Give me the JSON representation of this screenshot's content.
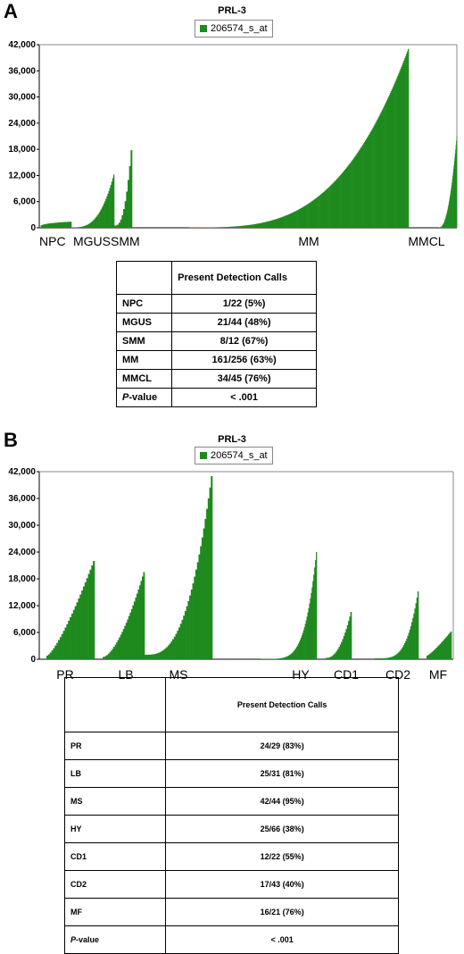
{
  "panels": {
    "a": {
      "letter": "A",
      "title": "PRL-3",
      "legend": "206574_s_at"
    },
    "b": {
      "letter": "B",
      "title": "PRL-3",
      "legend": "206574_s_at"
    }
  },
  "colors": {
    "bar": "#1e8a1e",
    "axis": "#000000",
    "grid": "#cccccc"
  },
  "chart_data": [
    {
      "type": "bar",
      "title": "PRL-3",
      "legend": [
        "206574_s_at"
      ],
      "legend_position": "top-center",
      "ylim": [
        0,
        42000
      ],
      "yticks": [
        "0",
        "6,000",
        "12,000",
        "18,000",
        "24,000",
        "30,000",
        "36,000",
        "42,000"
      ],
      "grid": false,
      "groups": [
        {
          "name": "NPC",
          "n": 22,
          "max": 1400,
          "min": 50,
          "shape": 0.3,
          "label": "NPC"
        },
        {
          "name": "MGUS",
          "n": 44,
          "max": 12200,
          "min": 100,
          "shape": 3.0,
          "label": "MGUS"
        },
        {
          "name": "SMM",
          "n": 12,
          "max": 17800,
          "min": 500,
          "shape": 2.5,
          "label": "SMM"
        },
        {
          "name": "MM",
          "n": 256,
          "max": 41000,
          "min": 80,
          "shape": 3.3,
          "label": "MM"
        },
        {
          "name": "MMCL",
          "n": 45,
          "max": 21000,
          "min": 100,
          "shape": 2.2,
          "label": "MMCL"
        }
      ]
    },
    {
      "type": "bar",
      "title": "PRL-3",
      "legend": [
        "206574_s_at"
      ],
      "legend_position": "top-center",
      "ylim": [
        0,
        42000
      ],
      "yticks": [
        "0",
        "6,000",
        "12,000",
        "18,000",
        "24,000",
        "30,000",
        "36,000",
        "42,000"
      ],
      "grid": false,
      "groups": [
        {
          "name": "PR",
          "n": 29,
          "max": 22000,
          "min": 800,
          "shape": 1.3,
          "label": "PR"
        },
        {
          "name": "LB",
          "n": 31,
          "max": 19500,
          "min": 500,
          "shape": 1.6,
          "label": "LB"
        },
        {
          "name": "MS",
          "n": 44,
          "max": 41000,
          "min": 1000,
          "shape": 2.8,
          "label": "MS"
        },
        {
          "name": "HY",
          "n": 66,
          "max": 24000,
          "min": 80,
          "shape": 5.0,
          "label": "HY"
        },
        {
          "name": "CD1",
          "n": 22,
          "max": 10600,
          "min": 300,
          "shape": 2.2,
          "label": "CD1"
        },
        {
          "name": "CD2",
          "n": 43,
          "max": 15200,
          "min": 200,
          "shape": 4.0,
          "label": "CD2"
        },
        {
          "name": "MF",
          "n": 21,
          "max": 6200,
          "min": 800,
          "shape": 1.2,
          "label": "MF"
        }
      ]
    }
  ],
  "table_a": {
    "header": "Present Detection Calls",
    "rows": [
      {
        "label": "NPC",
        "value": "1/22 (5%)"
      },
      {
        "label": "MGUS",
        "value": "21/44 (48%)"
      },
      {
        "label": "SMM",
        "value": "8/12 (67%)"
      },
      {
        "label": "MM",
        "value": "161/256 (63%)"
      },
      {
        "label": "MMCL",
        "value": "34/45 (76%)"
      }
    ],
    "pvalue_p": "P",
    "pvalue_rest": "-value",
    "pvalue": "< .001"
  },
  "table_b": {
    "header": "Present Detection Calls",
    "rows": [
      {
        "label": "PR",
        "value": "24/29 (83%)"
      },
      {
        "label": "LB",
        "value": "25/31 (81%)"
      },
      {
        "label": "MS",
        "value": "42/44 (95%)"
      },
      {
        "label": "HY",
        "value": "25/66 (38%)"
      },
      {
        "label": "CD1",
        "value": "12/22 (55%)"
      },
      {
        "label": "CD2",
        "value": "17/43 (40%)"
      },
      {
        "label": "MF",
        "value": "16/21 (76%)"
      }
    ],
    "pvalue_p": "P",
    "pvalue_rest": "-value",
    "pvalue": "< .001"
  }
}
